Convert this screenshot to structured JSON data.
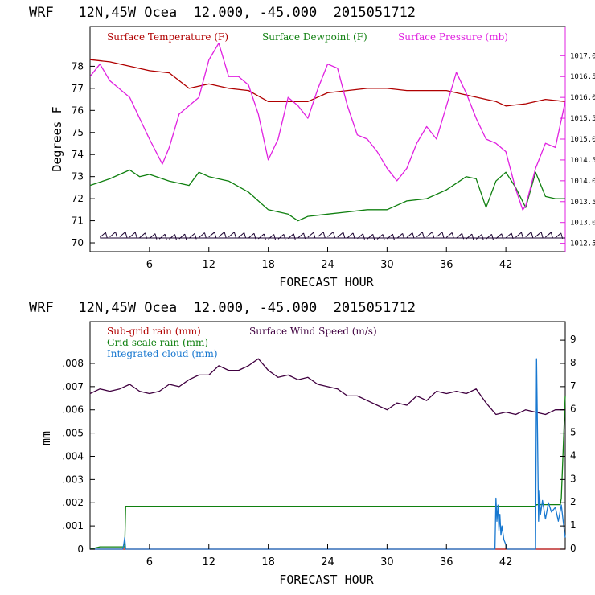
{
  "chart_data": [
    {
      "type": "line",
      "title": "WRF   12N,45W Ocea  12.000, -45.000  2015051712",
      "xlabel": "FORECAST HOUR",
      "ylabel": "Degrees F",
      "xlim": [
        0,
        48
      ],
      "ylim": [
        69.6,
        79.8
      ],
      "xticks": [
        6,
        12,
        18,
        24,
        30,
        36,
        42
      ],
      "yticks": [
        70,
        71,
        72,
        73,
        74,
        75,
        76,
        77,
        78
      ],
      "y2lim": [
        1012.3,
        1017.7
      ],
      "y2ticks": [
        "1012.5",
        "1013.0",
        "1013.5",
        "1014.0",
        "1014.5",
        "1015.0",
        "1015.5",
        "1016.0",
        "1016.5",
        "1017.0"
      ],
      "series": [
        {
          "name": "Surface Temperature (F)",
          "color": "#b00000",
          "axis": "left",
          "x": [
            0,
            2,
            4,
            6,
            8,
            10,
            12,
            14,
            16,
            18,
            20,
            22,
            24,
            26,
            28,
            30,
            32,
            34,
            36,
            38,
            40,
            41,
            42,
            44,
            46,
            48
          ],
          "y": [
            78.3,
            78.2,
            78.0,
            77.8,
            77.7,
            77.0,
            77.2,
            77.0,
            76.9,
            76.4,
            76.4,
            76.4,
            76.8,
            76.9,
            77.0,
            77.0,
            76.9,
            76.9,
            76.9,
            76.7,
            76.5,
            76.4,
            76.2,
            76.3,
            76.5,
            76.4
          ]
        },
        {
          "name": "Surface Dewpoint (F)",
          "color": "#108010",
          "axis": "left",
          "x": [
            0,
            2,
            4,
            5,
            6,
            8,
            10,
            11,
            12,
            14,
            16,
            18,
            20,
            21,
            22,
            24,
            26,
            28,
            30,
            32,
            34,
            36,
            37,
            38,
            39,
            40,
            41,
            42,
            43,
            44,
            45,
            46,
            47,
            48
          ],
          "y": [
            72.6,
            72.9,
            73.3,
            73.0,
            73.1,
            72.8,
            72.6,
            73.2,
            73.0,
            72.8,
            72.3,
            71.5,
            71.3,
            71.0,
            71.2,
            71.3,
            71.4,
            71.5,
            71.5,
            71.9,
            72.0,
            72.4,
            72.7,
            73.0,
            72.9,
            71.6,
            72.8,
            73.2,
            72.5,
            71.6,
            73.2,
            72.1,
            72.0,
            72.0
          ]
        },
        {
          "name": "Surface Pressure (mb)",
          "color": "#e020e0",
          "axis": "right",
          "x": [
            0,
            1,
            2,
            4,
            6,
            7.3,
            8,
            9,
            10,
            11,
            12,
            13,
            14,
            15,
            16,
            17,
            18,
            19,
            20,
            21,
            22,
            23,
            24,
            25,
            26,
            27,
            28,
            29,
            30,
            31,
            32,
            33,
            34,
            35,
            36,
            37,
            38,
            39,
            40,
            41,
            42,
            43,
            43.7,
            44,
            45,
            46,
            47,
            48
          ],
          "y": [
            1016.5,
            1016.8,
            1016.4,
            1016.0,
            1015.0,
            1014.4,
            1014.8,
            1015.6,
            1015.8,
            1016.0,
            1016.9,
            1017.3,
            1016.5,
            1016.5,
            1016.3,
            1015.6,
            1014.5,
            1015.0,
            1016.0,
            1015.8,
            1015.5,
            1016.2,
            1016.8,
            1016.7,
            1015.8,
            1015.1,
            1015.0,
            1014.7,
            1014.3,
            1014.0,
            1014.3,
            1014.9,
            1015.3,
            1015.0,
            1015.8,
            1016.6,
            1016.1,
            1015.5,
            1015.0,
            1014.9,
            1014.7,
            1013.8,
            1013.3,
            1013.4,
            1014.3,
            1014.9,
            1014.8,
            1015.9
          ]
        }
      ],
      "wind_barbs": "row of wind barbs along the bottom of the panel",
      "legend": "top, inside plot",
      "grid": false
    },
    {
      "type": "line",
      "title": "WRF   12N,45W Ocea  12.000, -45.000  2015051712",
      "xlabel": "FORECAST HOUR",
      "ylabel": "mm",
      "xlim": [
        0,
        48
      ],
      "ylim": [
        0,
        0.0098
      ],
      "xticks": [
        6,
        12,
        18,
        24,
        30,
        36,
        42
      ],
      "yticks": [
        "0",
        ".001",
        ".002",
        ".003",
        ".004",
        ".005",
        ".006",
        ".007",
        ".008"
      ],
      "ytick_values": [
        0,
        0.001,
        0.002,
        0.003,
        0.004,
        0.005,
        0.006,
        0.007,
        0.008
      ],
      "y2lim": [
        0,
        9.8
      ],
      "y2ticks": [
        "0",
        "1",
        "2",
        "3",
        "4",
        "5",
        "6",
        "7",
        "8",
        "9"
      ],
      "series": [
        {
          "name": "Sub-grid rain (mm)",
          "color": "#b00000",
          "axis": "left",
          "x": [
            0,
            48
          ],
          "y": [
            0,
            0
          ]
        },
        {
          "name": "Grid-scale rain (mm)",
          "color": "#108010",
          "axis": "left",
          "x": [
            0,
            1,
            3.3,
            3.5,
            3.6,
            45,
            45.1,
            47.5,
            47.6,
            48
          ],
          "y": [
            0,
            0.0001,
            0.0001,
            0.0001,
            0.00185,
            0.00185,
            0.00192,
            0.00192,
            0.0022,
            0.0066
          ]
        },
        {
          "name": "Surface Wind Speed (m/s)",
          "color": "#400040",
          "axis": "right",
          "x": [
            0,
            1,
            2,
            3,
            4,
            5,
            6,
            7,
            8,
            9,
            10,
            11,
            12,
            13,
            14,
            15,
            16,
            17,
            18,
            19,
            20,
            21,
            22,
            23,
            24,
            25,
            26,
            27,
            28,
            29,
            30,
            31,
            32,
            33,
            34,
            35,
            36,
            37,
            38,
            39,
            40,
            41,
            42,
            43,
            44,
            45,
            46,
            47,
            48
          ],
          "y": [
            6.7,
            6.9,
            6.8,
            6.9,
            7.1,
            6.8,
            6.7,
            6.8,
            7.1,
            7.0,
            7.3,
            7.5,
            7.5,
            7.9,
            7.7,
            7.7,
            7.9,
            8.2,
            7.7,
            7.4,
            7.5,
            7.3,
            7.4,
            7.1,
            7.0,
            6.9,
            6.6,
            6.6,
            6.4,
            6.2,
            6.0,
            6.3,
            6.2,
            6.6,
            6.4,
            6.8,
            6.7,
            6.8,
            6.7,
            6.9,
            6.3,
            5.8,
            5.9,
            5.8,
            6.0,
            5.9,
            5.8,
            6.0,
            6.0
          ]
        },
        {
          "name": "Integrated cloud (mm)",
          "color": "#1878d0",
          "axis": "right",
          "x": [
            0,
            3.3,
            3.4,
            3.5,
            3.6,
            40.9,
            41.0,
            41.1,
            41.2,
            41.3,
            41.4,
            41.5,
            41.6,
            41.8,
            42.0,
            42.1,
            45.0,
            45.1,
            45.2,
            45.3,
            45.4,
            45.5,
            45.7,
            46.0,
            46.3,
            46.6,
            47.0,
            47.3,
            47.6,
            47.9,
            48
          ],
          "y": [
            0,
            0,
            0.2,
            0.5,
            0,
            0,
            2.2,
            1.2,
            1.9,
            0.8,
            1.5,
            0.6,
            1.0,
            0.4,
            0.2,
            0,
            0,
            8.2,
            5.0,
            1.2,
            2.5,
            1.5,
            2.1,
            1.3,
            2.0,
            1.6,
            1.8,
            1.2,
            1.9,
            0.8,
            0.5
          ]
        }
      ],
      "legend": "top-left, inside plot",
      "grid": false
    }
  ]
}
